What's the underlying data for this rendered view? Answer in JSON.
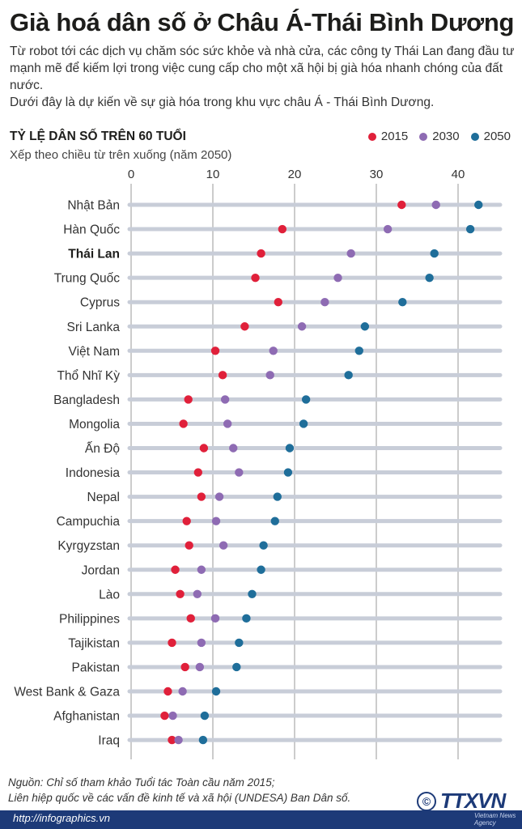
{
  "header": {
    "title": "Già hoá dân số ở Châu Á-Thái Bình Dương",
    "intro_line1": "Từ robot tới các dịch vụ chăm sóc sức khỏe và nhà cửa, các công ty Thái Lan đang đầu tư mạnh mẽ để kiếm lợi trong việc cung cấp cho một xã hội bị già hóa nhanh chóng của đất nước.",
    "intro_line2": "Dưới đây là dự kiến về sự già hóa trong khu vực châu Á - Thái Bình Dương."
  },
  "chart_data": {
    "type": "scatter",
    "title": "TỶ LỆ DÂN SỐ TRÊN 60 TUỔI",
    "subtitle": "Xếp theo chiều từ trên xuống (năm 2050)",
    "xlim": [
      0,
      45
    ],
    "xticks": [
      0,
      10,
      20,
      30,
      40
    ],
    "highlight": "Thái Lan",
    "categories": [
      "Nhật Bản",
      "Hàn Quốc",
      "Thái Lan",
      "Trung Quốc",
      "Cyprus",
      "Sri Lanka",
      "Việt Nam",
      "Thổ Nhĩ Kỳ",
      "Bangladesh",
      "Mongolia",
      "Ấn Độ",
      "Indonesia",
      "Nepal",
      "Campuchia",
      "Kyrgyzstan",
      "Jordan",
      "Lào",
      "Philippines",
      "Tajikistan",
      "Pakistan",
      "West Bank & Gaza",
      "Afghanistan",
      "Iraq"
    ],
    "series": [
      {
        "name": "2015",
        "color": "#e0203a",
        "values": [
          33.1,
          18.5,
          15.9,
          15.2,
          18.0,
          13.9,
          10.3,
          11.2,
          7.0,
          6.4,
          8.9,
          8.2,
          8.6,
          6.8,
          7.1,
          5.4,
          6.0,
          7.3,
          5.0,
          6.6,
          4.5,
          4.1,
          5.0
        ]
      },
      {
        "name": "2030",
        "color": "#8e6bb3",
        "values": [
          37.3,
          31.4,
          26.9,
          25.3,
          23.7,
          20.9,
          17.4,
          17.0,
          11.5,
          11.8,
          12.5,
          13.2,
          10.8,
          10.4,
          11.3,
          8.6,
          8.1,
          10.3,
          8.6,
          8.4,
          6.3,
          5.1,
          5.8
        ]
      },
      {
        "name": "2050",
        "color": "#1f6e9a",
        "values": [
          42.5,
          41.5,
          37.1,
          36.5,
          33.2,
          28.6,
          27.9,
          26.6,
          21.4,
          21.1,
          19.4,
          19.2,
          17.9,
          17.6,
          16.2,
          15.9,
          14.8,
          14.1,
          13.2,
          12.9,
          10.4,
          9.0,
          8.8
        ]
      }
    ]
  },
  "source": {
    "line1": "Nguồn: Chỉ số tham khảo Tuổi tác Toàn cầu năm 2015;",
    "line2": "Liên hiệp quốc về các vấn đề kinh tế và xã hội (UNDESA) Ban Dân số."
  },
  "footer": {
    "url": "http://infographics.vn",
    "logo_text": "TTXVN",
    "logo_sub": "Vietnam News Agency",
    "copyright": "©"
  }
}
